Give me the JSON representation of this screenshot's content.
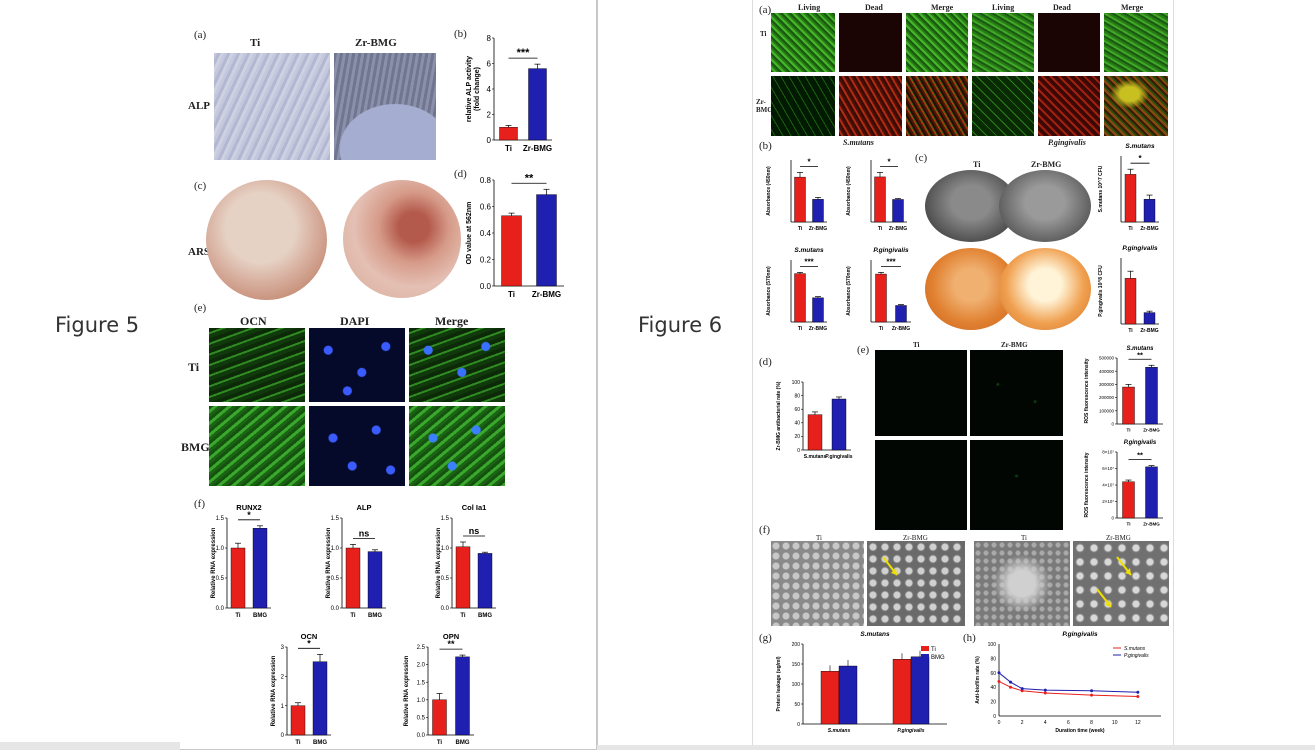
{
  "figure5": {
    "title": "Figure 5",
    "panel_a": {
      "label": "(a)",
      "col1": "Ti",
      "col2": "Zr-BMG",
      "row": "ALP"
    },
    "panel_b": {
      "label": "(b)"
    },
    "panel_c": {
      "label": "(c)",
      "row": "ARS"
    },
    "panel_d": {
      "label": "(d)"
    },
    "panel_e": {
      "label": "(e)",
      "col1": "OCN",
      "col2": "DAPI",
      "col3": "Merge",
      "row1": "Ti",
      "row2": "BMG"
    },
    "panel_f": {
      "label": "(f)"
    }
  },
  "figure6": {
    "title": "Figure 6",
    "panel_a": {
      "label": "(a)",
      "cols": [
        "Living",
        "Dead",
        "Merge",
        "Living",
        "Dead",
        "Merge"
      ],
      "row1": "Ti",
      "row2": "Zr-BMG"
    },
    "panel_b": {
      "label": "(b)",
      "title1": "S.mutans",
      "title2": "P.gingivalis"
    },
    "panel_c": {
      "label": "(c)",
      "col1": "Ti",
      "col2": "Zr-BMG"
    },
    "panel_d": {
      "label": "(d)"
    },
    "panel_e": {
      "label": "(e)",
      "col1": "Ti",
      "col2": "Zr-BMG"
    },
    "panel_f": {
      "label": "(f)",
      "cols": [
        "Ti",
        "Zr-BMG",
        "Ti",
        "Zr-BMG"
      ]
    },
    "panel_g": {
      "label": "(g)"
    },
    "panel_h": {
      "label": "(h)"
    }
  },
  "chart_data": [
    {
      "id": "f5b",
      "type": "bar",
      "categories": [
        "Ti",
        "Zr-BMG"
      ],
      "values": [
        1.0,
        5.6
      ],
      "errors": [
        0.15,
        0.35
      ],
      "ylabel": "relative ALP activity\n(fold change)",
      "ylim": [
        0,
        8
      ],
      "yticks": [
        "0",
        "2",
        "4",
        "6",
        "8"
      ],
      "significance": "***",
      "colors": [
        "#e8201c",
        "#1f1fb0"
      ]
    },
    {
      "id": "f5d",
      "type": "bar",
      "categories": [
        "Ti",
        "Zr-BMG"
      ],
      "values": [
        0.53,
        0.69
      ],
      "errors": [
        0.02,
        0.04
      ],
      "ylabel": "OD value at 562nm",
      "ylim": [
        0,
        0.8
      ],
      "yticks": [
        "0.0",
        "0.2",
        "0.4",
        "0.6",
        "0.8"
      ],
      "significance": "**",
      "colors": [
        "#e8201c",
        "#1f1fb0"
      ]
    },
    {
      "id": "f5f1",
      "type": "bar",
      "title": "RUNX2",
      "categories": [
        "Ti",
        "BMG"
      ],
      "values": [
        1.0,
        1.33
      ],
      "errors": [
        0.08,
        0.04
      ],
      "ylabel": "Relative RNA expression",
      "ylim": [
        0,
        1.5
      ],
      "yticks": [
        "0.0",
        "0.5",
        "1.0",
        "1.5"
      ],
      "significance": "*",
      "colors": [
        "#e8201c",
        "#1f1fb0"
      ]
    },
    {
      "id": "f5f2",
      "type": "bar",
      "title": "ALP",
      "categories": [
        "Ti",
        "BMG"
      ],
      "values": [
        1.0,
        0.94
      ],
      "errors": [
        0.06,
        0.03
      ],
      "ylabel": "Relative RNA expression",
      "ylim": [
        0,
        1.5
      ],
      "yticks": [
        "0.0",
        "0.5",
        "1.0",
        "1.5"
      ],
      "significance": "ns",
      "colors": [
        "#e8201c",
        "#1f1fb0"
      ]
    },
    {
      "id": "f5f3",
      "type": "bar",
      "title": "Col Ia1",
      "categories": [
        "Ti",
        "BMG"
      ],
      "values": [
        1.02,
        0.91
      ],
      "errors": [
        0.08,
        0.02
      ],
      "ylabel": "Relative RNA expression",
      "ylim": [
        0,
        1.5
      ],
      "yticks": [
        "0.0",
        "0.5",
        "1.0",
        "1.5"
      ],
      "significance": "ns",
      "colors": [
        "#e8201c",
        "#1f1fb0"
      ]
    },
    {
      "id": "f5f4",
      "type": "bar",
      "title": "OCN",
      "categories": [
        "Ti",
        "BMG"
      ],
      "values": [
        1.0,
        2.5
      ],
      "errors": [
        0.1,
        0.25
      ],
      "ylabel": "Relative RNA expression",
      "ylim": [
        0,
        3
      ],
      "yticks": [
        "0",
        "1",
        "2",
        "3"
      ],
      "significance": "*",
      "colors": [
        "#e8201c",
        "#1f1fb0"
      ]
    },
    {
      "id": "f5f5",
      "type": "bar",
      "title": "OPN",
      "categories": [
        "Ti",
        "BMG"
      ],
      "values": [
        1.0,
        2.22
      ],
      "errors": [
        0.18,
        0.05
      ],
      "ylabel": "Relative RNA expression",
      "ylim": [
        0,
        2.5
      ],
      "yticks": [
        "0.0",
        "0.5",
        "1.0",
        "1.5",
        "2.0",
        "2.5"
      ],
      "significance": "**",
      "colors": [
        "#e8201c",
        "#1f1fb0"
      ]
    },
    {
      "id": "f6b1",
      "type": "bar",
      "categories": [
        "Ti",
        "Zr-BMG"
      ],
      "values": [
        0.95,
        0.48
      ],
      "errors": [
        0.1,
        0.04
      ],
      "ylabel": "Absorbance (450nm)",
      "significance": "*",
      "colors": [
        "#e8201c",
        "#1f1fb0"
      ]
    },
    {
      "id": "f6b2",
      "type": "bar",
      "categories": [
        "Ti",
        "Zr-BMG"
      ],
      "values": [
        1.0,
        0.5
      ],
      "errors": [
        0.1,
        0.02
      ],
      "ylabel": "Absorbance (450nm)",
      "significance": "*",
      "colors": [
        "#e8201c",
        "#1f1fb0"
      ]
    },
    {
      "id": "f6b3",
      "type": "bar",
      "title": "S.mutans",
      "categories": [
        "Ti",
        "Zr-BMG"
      ],
      "values": [
        0.8,
        0.4
      ],
      "errors": [
        0.02,
        0.02
      ],
      "ylabel": "Absorbance (570nm)",
      "significance": "***",
      "colors": [
        "#e8201c",
        "#1f1fb0"
      ]
    },
    {
      "id": "f6b4",
      "type": "bar",
      "title": "P.gingivalis",
      "categories": [
        "Ti",
        "Zr-BMG"
      ],
      "values": [
        0.58,
        0.2
      ],
      "errors": [
        0.02,
        0.01
      ],
      "ylabel": "Absorbance (570nm)",
      "significance": "***",
      "colors": [
        "#e8201c",
        "#1f1fb0"
      ]
    },
    {
      "id": "f6c1",
      "type": "bar",
      "title": "S.mutans",
      "categories": [
        "Ti",
        "Zr-BMG"
      ],
      "values": [
        2.3,
        1.1
      ],
      "errors": [
        0.25,
        0.2
      ],
      "ylabel": "S.mutans 10^7 CFU",
      "significance": "*",
      "colors": [
        "#e8201c",
        "#1f1fb0"
      ]
    },
    {
      "id": "f6c2",
      "type": "bar",
      "title": "P.gingivalis",
      "categories": [
        "Ti",
        "Zr-BMG"
      ],
      "values": [
        3.2,
        0.8
      ],
      "errors": [
        0.5,
        0.1
      ],
      "ylabel": "P.gingivalis 10^8 CFU",
      "colors": [
        "#e8201c",
        "#1f1fb0"
      ]
    },
    {
      "id": "f6d",
      "type": "bar",
      "categories": [
        "S.mutans",
        "P.gingivalis"
      ],
      "values": [
        52,
        75
      ],
      "errors": [
        4,
        3
      ],
      "ylabel": "Zr-BMG antibacterial rate (%)",
      "ylim": [
        0,
        100
      ],
      "yticks": [
        "0",
        "20",
        "40",
        "60",
        "80",
        "100"
      ],
      "colors": [
        "#e8201c",
        "#1f1fb0"
      ]
    },
    {
      "id": "f6e1",
      "type": "bar",
      "title": "S.mutans",
      "categories": [
        "Ti",
        "Zr-BMG"
      ],
      "values": [
        280000,
        430000
      ],
      "errors": [
        20000,
        15000
      ],
      "ylabel": "ROS fluorescence intensity",
      "ylim": [
        0,
        500000
      ],
      "yticks": [
        "0",
        "100000",
        "200000",
        "300000",
        "400000",
        "500000"
      ],
      "significance": "**",
      "colors": [
        "#e8201c",
        "#1f1fb0"
      ]
    },
    {
      "id": "f6e2",
      "type": "bar",
      "title": "P.gingivalis",
      "categories": [
        "Ti",
        "Zr-BMG"
      ],
      "values": [
        44000000,
        62000000
      ],
      "errors": [
        2000000,
        1500000
      ],
      "ylabel": "ROS fluorescence intensity",
      "ylim": [
        0,
        80000000
      ],
      "yticks": [
        "0",
        "2×10⁷",
        "4×10⁷",
        "6×10⁷",
        "8×10⁷"
      ],
      "significance": "**",
      "colors": [
        "#e8201c",
        "#1f1fb0"
      ]
    },
    {
      "id": "f6g",
      "type": "bar",
      "title": "S.mutans",
      "categories": [
        "S.mutans",
        "P.gingivalis"
      ],
      "series": [
        {
          "name": "Ti",
          "values": [
            132,
            162
          ]
        },
        {
          "name": "BMG",
          "values": [
            145,
            168
          ]
        }
      ],
      "ylabel": "Protein leakage (ug/ml)",
      "ylim": [
        0,
        200
      ],
      "yticks": [
        "0",
        "50",
        "100",
        "150",
        "200"
      ],
      "colors": [
        "#e8201c",
        "#1f1fb0"
      ]
    },
    {
      "id": "f6h",
      "type": "line",
      "title": "P.gingivalis",
      "x": [
        0,
        1,
        2,
        4,
        8,
        12
      ],
      "series": [
        {
          "name": "S.mutans",
          "values": [
            48,
            40,
            35,
            32,
            29,
            27
          ]
        },
        {
          "name": "P.gingivalis",
          "values": [
            60,
            47,
            38,
            36,
            35,
            33
          ]
        }
      ],
      "xlabel": "Duration time (week)",
      "ylabel": "Anti-biofilm rate (%)",
      "ylim": [
        0,
        100
      ],
      "xlim": [
        0,
        14
      ],
      "yticks": [
        "0",
        "20",
        "40",
        "60",
        "80",
        "100"
      ],
      "xticks": [
        "0",
        "2",
        "4",
        "6",
        "8",
        "10",
        "12"
      ],
      "colors": [
        "#e8201c",
        "#1f1fb0"
      ]
    }
  ]
}
